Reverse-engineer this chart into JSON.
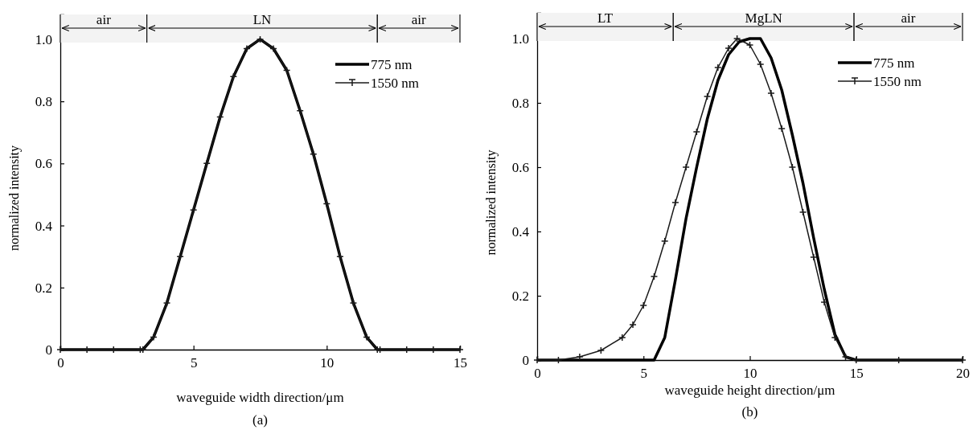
{
  "chart_data": [
    {
      "type": "line",
      "xlabel": "waveguide width direction/μm",
      "ylabel": "normalized intensity",
      "annotations": [
        "(a)"
      ],
      "xlim": [
        0,
        15
      ],
      "xticks": [
        0,
        5,
        10,
        15
      ],
      "ylim": [
        0,
        1.08
      ],
      "yticks": [
        0.0,
        0.2,
        0.4,
        0.6,
        0.8,
        {
          "value": 1.0,
          "label": "1.0"
        }
      ],
      "grid": false,
      "legend": "top right",
      "line_style": "solid",
      "x": [
        0,
        1,
        2,
        3,
        3.1,
        3.5,
        4,
        4.5,
        5,
        5.5,
        6,
        6.5,
        7,
        7.5,
        8,
        8.5,
        9,
        9.5,
        10,
        10.5,
        11,
        11.5,
        11.9,
        12,
        13,
        14,
        15
      ],
      "series": [
        {
          "name": "775 nm",
          "color": "#000000",
          "marker": "none",
          "values": [
            0,
            0,
            0,
            0,
            0,
            0.04,
            0.15,
            0.3,
            0.45,
            0.6,
            0.75,
            0.88,
            0.97,
            1.0,
            0.97,
            0.9,
            0.77,
            0.63,
            0.47,
            0.3,
            0.15,
            0.04,
            0,
            0,
            0,
            0,
            0
          ]
        },
        {
          "name": "1550 nm",
          "color": "#1a1a1a",
          "marker": "cross",
          "values": [
            0,
            0,
            0,
            0,
            0,
            0.04,
            0.15,
            0.3,
            0.45,
            0.6,
            0.75,
            0.88,
            0.97,
            1.0,
            0.97,
            0.9,
            0.77,
            0.63,
            0.47,
            0.3,
            0.15,
            0.04,
            0,
            0,
            0,
            0,
            0
          ]
        }
      ],
      "bands": [
        {
          "axis": "x",
          "from": 0,
          "to": 3.25,
          "label": "air"
        },
        {
          "axis": "x",
          "from": 3.25,
          "to": 11.9,
          "label": "LN"
        },
        {
          "axis": "x",
          "from": 11.9,
          "to": 15,
          "label": "air"
        }
      ]
    },
    {
      "type": "line",
      "xlabel": "waveguide height direction/μm",
      "ylabel": "normalized intensity",
      "annotations": [
        "(b)"
      ],
      "xlim": [
        0,
        20
      ],
      "xticks": [
        0,
        5,
        10,
        15,
        20
      ],
      "ylim": [
        0,
        1.08
      ],
      "yticks": [
        0.0,
        0.2,
        0.4,
        0.6,
        0.8,
        {
          "value": 1.0,
          "label": "1.0"
        }
      ],
      "grid": false,
      "legend": "top right",
      "line_style": "solid",
      "series": [
        {
          "name": "775 nm",
          "color": "#000000",
          "marker": "none",
          "x": [
            0,
            2,
            4,
            5,
            5.5,
            6,
            6.5,
            7,
            7.5,
            8,
            8.5,
            9,
            9.5,
            10,
            10.5,
            11,
            11.5,
            12,
            12.5,
            13,
            13.5,
            14,
            14.5,
            15,
            17,
            20
          ],
          "values": [
            0,
            0,
            0,
            0,
            0,
            0.07,
            0.25,
            0.44,
            0.6,
            0.75,
            0.87,
            0.95,
            0.99,
            1.0,
            1.0,
            0.94,
            0.84,
            0.7,
            0.55,
            0.38,
            0.22,
            0.08,
            0.01,
            0,
            0,
            0
          ]
        },
        {
          "name": "1550 nm",
          "color": "#1a1a1a",
          "marker": "cross",
          "x": [
            0,
            1,
            2,
            3,
            4,
            4.5,
            5,
            5.5,
            6,
            6.5,
            7,
            7.5,
            8,
            8.5,
            9,
            9.4,
            10,
            10.5,
            11,
            11.5,
            12,
            12.5,
            13,
            13.5,
            14,
            14.5,
            15,
            17,
            20
          ],
          "values": [
            0,
            0,
            0.01,
            0.03,
            0.07,
            0.11,
            0.17,
            0.26,
            0.37,
            0.49,
            0.6,
            0.71,
            0.82,
            0.91,
            0.97,
            1.0,
            0.98,
            0.92,
            0.83,
            0.72,
            0.6,
            0.46,
            0.32,
            0.18,
            0.07,
            0.01,
            0,
            0,
            0
          ]
        }
      ],
      "bands": [
        {
          "axis": "x",
          "from": 0,
          "to": 6.4,
          "label": "LT"
        },
        {
          "axis": "x",
          "from": 6.4,
          "to": 14.9,
          "label": "MgLN"
        },
        {
          "axis": "x",
          "from": 14.9,
          "to": 20,
          "label": "air"
        }
      ]
    }
  ]
}
